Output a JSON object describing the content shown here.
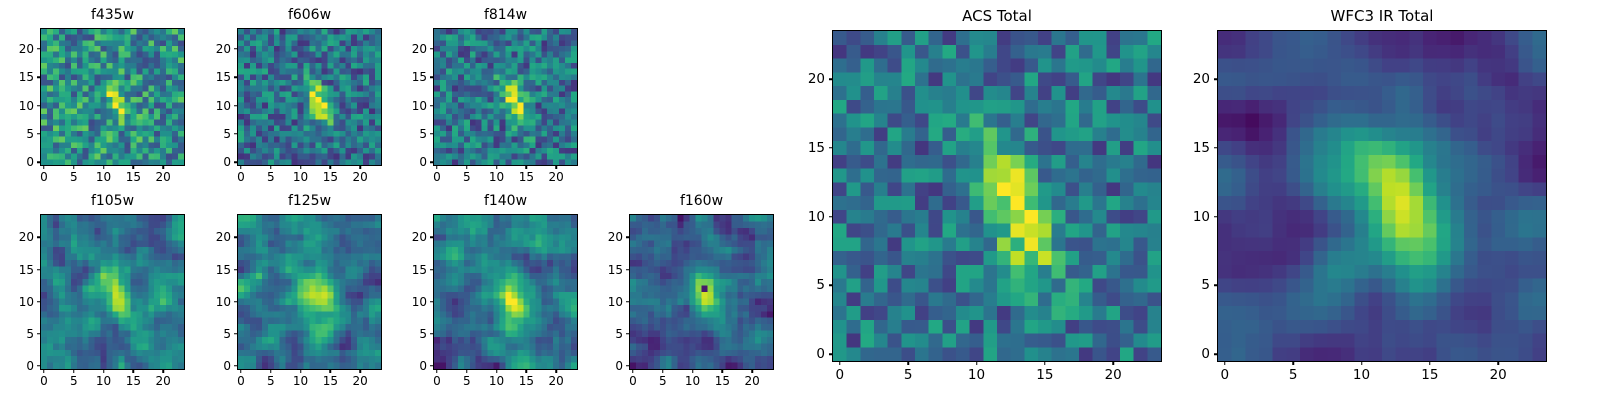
{
  "figure": {
    "background": "#ffffff",
    "text_color": "#000000",
    "colormap_name": "viridis",
    "colormap_stops": [
      "#440154",
      "#482475",
      "#414487",
      "#355f8d",
      "#2a788e",
      "#21918c",
      "#22a884",
      "#44bf70",
      "#7ad151",
      "#bddf26",
      "#fde725"
    ]
  },
  "chart_data": {
    "type": "heatmap",
    "description": "Galaxy image cutouts (24x24 pixels, viridis colormap) in seven HST filter bands plus stacked ACS and WFC3 IR totals; an elongated galaxy blob runs diagonally through the center of each panel over a noisy background",
    "grid_size": 24,
    "xlim": [
      -0.5,
      23.5
    ],
    "ylim": [
      -0.5,
      23.5
    ],
    "xticks": [
      0,
      5,
      10,
      15,
      20
    ],
    "yticks": [
      0,
      5,
      10,
      15,
      20
    ],
    "panels": [
      {
        "title": "f435w",
        "seed": 11,
        "noise_base": 0.5,
        "noise_amp": 0.55,
        "smooth_passes": 0,
        "galaxy": {
          "cx": 12.3,
          "cy": 10.5,
          "sigma_major": 2.8,
          "sigma_minor": 1.15,
          "angle_deg": -70,
          "amplitude": 0.38
        },
        "defects": []
      },
      {
        "title": "f606w",
        "seed": 22,
        "noise_base": 0.38,
        "noise_amp": 0.48,
        "smooth_passes": 0,
        "galaxy": {
          "cx": 13.0,
          "cy": 10.5,
          "sigma_major": 3.1,
          "sigma_minor": 1.1,
          "angle_deg": -70,
          "amplitude": 0.62
        },
        "defects": []
      },
      {
        "title": "f814w",
        "seed": 33,
        "noise_base": 0.38,
        "noise_amp": 0.48,
        "smooth_passes": 0,
        "galaxy": {
          "cx": 13.0,
          "cy": 10.5,
          "sigma_major": 3.1,
          "sigma_minor": 1.25,
          "angle_deg": -70,
          "amplitude": 0.62
        },
        "defects": []
      },
      {
        "title": "f105w",
        "seed": 44,
        "noise_base": 0.4,
        "noise_amp": 0.95,
        "smooth_passes": 1,
        "galaxy": {
          "cx": 12.5,
          "cy": 10.5,
          "sigma_major": 3.3,
          "sigma_minor": 1.5,
          "angle_deg": -68,
          "amplitude": 0.5
        },
        "defects": []
      },
      {
        "title": "f125w",
        "seed": 55,
        "noise_base": 0.4,
        "noise_amp": 0.95,
        "smooth_passes": 1,
        "galaxy": {
          "cx": 12.8,
          "cy": 10.8,
          "sigma_major": 3.0,
          "sigma_minor": 1.9,
          "angle_deg": -65,
          "amplitude": 0.55
        },
        "defects": []
      },
      {
        "title": "f140w",
        "seed": 66,
        "noise_base": 0.4,
        "noise_amp": 0.95,
        "smooth_passes": 1,
        "galaxy": {
          "cx": 12.8,
          "cy": 10.5,
          "sigma_major": 3.2,
          "sigma_minor": 1.8,
          "angle_deg": -68,
          "amplitude": 0.55
        },
        "defects": []
      },
      {
        "title": "f160w",
        "seed": 77,
        "noise_base": 0.3,
        "noise_amp": 0.85,
        "smooth_passes": 1,
        "galaxy": {
          "cx": 12.5,
          "cy": 11.0,
          "sigma_major": 2.5,
          "sigma_minor": 1.5,
          "angle_deg": -65,
          "amplitude": 0.68
        },
        "defects": [
          {
            "x": 12,
            "y": 12,
            "value": 0.07
          }
        ]
      },
      {
        "title": "ACS Total",
        "seed": 88,
        "noise_base": 0.38,
        "noise_amp": 0.45,
        "smooth_passes": 0,
        "galaxy": {
          "cx": 13.0,
          "cy": 10.5,
          "sigma_major": 3.8,
          "sigma_minor": 1.5,
          "angle_deg": -70,
          "amplitude": 0.62
        },
        "defects": []
      },
      {
        "title": "WFC3 IR Total",
        "seed": 99,
        "noise_base": 0.22,
        "noise_amp": 1.1,
        "smooth_passes": 2,
        "galaxy": {
          "cx": 12.8,
          "cy": 10.8,
          "sigma_major": 3.9,
          "sigma_minor": 2.1,
          "angle_deg": -66,
          "amplitude": 0.82
        },
        "defects": []
      }
    ]
  }
}
